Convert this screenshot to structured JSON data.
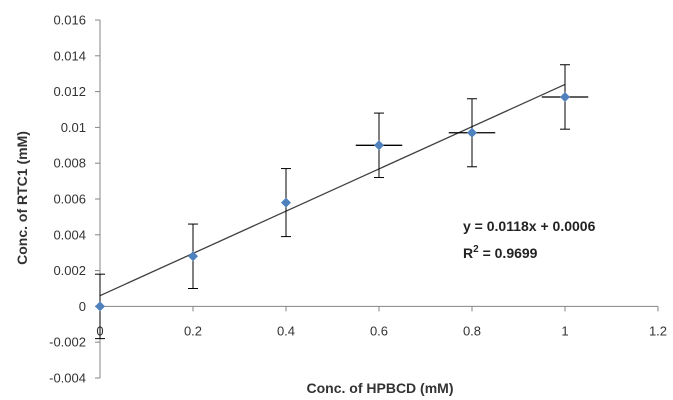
{
  "chart_data": {
    "type": "scatter",
    "xlabel": "Conc. of HPBCD (mM)",
    "ylabel": "Conc. of RTC1 (mM)",
    "xlim": [
      0,
      1.2
    ],
    "ylim": [
      -0.004,
      0.016
    ],
    "x_ticks": [
      "0",
      "0.2",
      "0.4",
      "0.6",
      "0.8",
      "1",
      "1.2"
    ],
    "y_ticks": [
      "-0.004",
      "-0.002",
      "0",
      "0.002",
      "0.004",
      "0.006",
      "0.008",
      "0.01",
      "0.012",
      "0.014",
      "0.016"
    ],
    "grid": false,
    "points": [
      {
        "x": 0,
        "y": 0,
        "y_err": 0.0018,
        "x_err": 0
      },
      {
        "x": 0.2,
        "y": 0.0028,
        "y_err": 0.0018,
        "x_err": 0
      },
      {
        "x": 0.4,
        "y": 0.0058,
        "y_err": 0.0019,
        "x_err": 0
      },
      {
        "x": 0.6,
        "y": 0.009,
        "y_err": 0.0018,
        "x_err": 0.05
      },
      {
        "x": 0.8,
        "y": 0.0097,
        "y_err": 0.0019,
        "x_err": 0.05
      },
      {
        "x": 1,
        "y": 0.0117,
        "y_err": 0.0018,
        "x_err": 0.05
      }
    ],
    "trendline": {
      "slope": 0.0118,
      "intercept": 0.0006,
      "x_range": [
        0,
        1
      ]
    },
    "equation_line1": "y = 0.0118x + 0.0006",
    "equation_line2_prefix": "R",
    "equation_line2_sup": "2",
    "equation_line2_suffix": " = 0.9699",
    "colors": {
      "marker": "#4f81bd",
      "line": "#404040",
      "axis": "#868686",
      "errorbar": "#000000"
    }
  }
}
